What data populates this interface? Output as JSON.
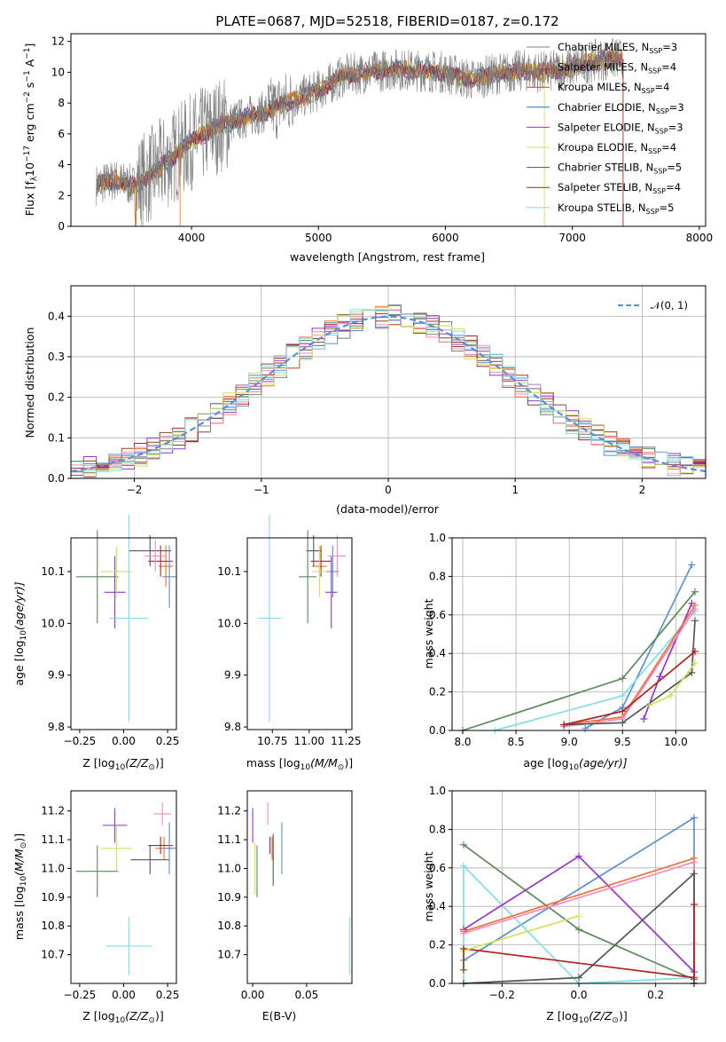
{
  "colors": {
    "chabrier_miles": "#808080",
    "salpeter_miles": "#ff7f0e",
    "kroupa_miles": "#a0522d",
    "chabrier_elodie": "#1f77b4",
    "salpeter_elodie": "#9932cc",
    "kroupa_elodie": "#d4e157",
    "chabrier_stelib": "#555555",
    "salpeter_stelib": "#b22222",
    "kroupa_stelib": "#80deea",
    "extra_blue": "#5b8fd8",
    "extra_green": "#5a8a5a",
    "extra_pink": "#f08cc0",
    "extra_orange": "#f07030",
    "normal": "#5b8fd8"
  },
  "chart_data": [
    {
      "type": "line",
      "title": "PLATE=0687, MJD=52518, FIBERID=0187, z=0.172",
      "xlabel": "wavelength [Angstrom, rest frame]",
      "ylabel": "Flux [f",
      "ylabel_sub": "λ",
      "ylabel_mid": "10",
      "ylabel_sup": "−17",
      "ylabel_tail": " erg cm",
      "ylabel_sup2": "−2",
      "ylabel_tail2": " s",
      "ylabel_sup3": "−1",
      "ylabel_tail3": " A",
      "ylabel_sup4": "−1",
      "ylabel_end": "]",
      "xlim": [
        3050,
        8050
      ],
      "ylim": [
        0,
        12.5
      ],
      "xticks": [
        "4000",
        "5000",
        "6000",
        "7000",
        "8000"
      ],
      "xtick_values": [
        4000,
        5000,
        6000,
        7000,
        8000
      ],
      "yticks": [
        "0",
        "2",
        "4",
        "6",
        "8",
        "10",
        "12"
      ],
      "ytick_values": [
        0,
        2,
        4,
        6,
        8,
        10,
        12
      ],
      "legend_position": "right",
      "spectrum_anchors": {
        "x": [
          3250,
          3400,
          3550,
          3700,
          3850,
          4000,
          4200,
          4400,
          4600,
          4800,
          5000,
          5200,
          5400,
          5600,
          5800,
          6000,
          6200,
          6400,
          6600,
          6800,
          7000,
          7200,
          7400
        ],
        "y": [
          2.7,
          3.0,
          2.6,
          3.5,
          4.5,
          5.5,
          6.5,
          7.0,
          7.5,
          8.2,
          8.8,
          9.8,
          10.0,
          10.2,
          10.1,
          10.0,
          9.5,
          9.9,
          10.1,
          10.0,
          10.3,
          10.8,
          10.9
        ]
      },
      "series": [
        {
          "name": "Chabrier MILES, N",
          "sub": "SSP",
          "tail": "=3",
          "color_key": "chabrier_miles"
        },
        {
          "name": "Salpeter MILES, N",
          "sub": "SSP",
          "tail": "=4",
          "color_key": "salpeter_miles"
        },
        {
          "name": "Kroupa MILES, N",
          "sub": "SSP",
          "tail": "=4",
          "color_key": "kroupa_miles"
        },
        {
          "name": "Chabrier ELODIE, N",
          "sub": "SSP",
          "tail": "=3",
          "color_key": "chabrier_elodie"
        },
        {
          "name": "Salpeter ELODIE, N",
          "sub": "SSP",
          "tail": "=3",
          "color_key": "salpeter_elodie"
        },
        {
          "name": "Kroupa ELODIE, N",
          "sub": "SSP",
          "tail": "=4",
          "color_key": "kroupa_elodie"
        },
        {
          "name": "Chabrier STELIB, N",
          "sub": "SSP",
          "tail": "=5",
          "color_key": "chabrier_stelib"
        },
        {
          "name": "Salpeter STELIB, N",
          "sub": "SSP",
          "tail": "=4",
          "color_key": "salpeter_stelib"
        },
        {
          "name": "Kroupa STELIB, N",
          "sub": "SSP",
          "tail": "=5",
          "color_key": "kroupa_stelib"
        }
      ]
    },
    {
      "type": "bar",
      "xlabel": "(data-model)/error",
      "ylabel": "Normed distribution",
      "xlim": [
        -2.5,
        2.5
      ],
      "ylim": [
        0,
        0.475
      ],
      "grid": true,
      "xticks": [
        "−2",
        "−1",
        "0",
        "1",
        "2"
      ],
      "xtick_values": [
        -2,
        -1,
        0,
        1,
        2
      ],
      "yticks": [
        "0.0",
        "0.1",
        "0.2",
        "0.3",
        "0.4"
      ],
      "ytick_values": [
        0,
        0.1,
        0.2,
        0.3,
        0.4
      ],
      "legend": "𝒩(0, 1)",
      "legend_position": "top-right",
      "bin_width": 0.1,
      "histogram_colors": [
        "#5b8fd8",
        "#f07030",
        "#5a8a5a",
        "#b22222",
        "#9932cc",
        "#8b4513",
        "#f08cc0",
        "#808080",
        "#d4e157",
        "#80deea"
      ]
    },
    {
      "type": "scatter",
      "xlabel": "Z [log",
      "xlabel_sub": "10",
      "xlabel_tail": "(Z/Z",
      "xlabel_sub2": "⊙",
      "xlabel_end": ")]",
      "ylabel": "age  [log",
      "ylabel_sub": "10",
      "ylabel_tail": "(age/yr)]",
      "xlim": [
        -0.3,
        0.3
      ],
      "ylim": [
        9.795,
        10.165
      ],
      "xticks": [
        "−0.25",
        "0.00",
        "0.25"
      ],
      "xtick_values": [
        -0.25,
        0.0,
        0.25
      ],
      "yticks": [
        "9.8",
        "9.9",
        "10.0",
        "10.1"
      ],
      "ytick_values": [
        9.8,
        9.9,
        10.0,
        10.1
      ],
      "points": [
        {
          "x": 0.24,
          "y": 10.11,
          "xe": 0.04,
          "ye": 0.04,
          "c": "#f07030"
        },
        {
          "x": 0.21,
          "y": 10.12,
          "xe": 0.07,
          "ye": 0.03,
          "c": "#b22222"
        },
        {
          "x": 0.15,
          "y": 10.14,
          "xe": 0.12,
          "ye": 0.03,
          "c": "#555555"
        },
        {
          "x": 0.26,
          "y": 10.09,
          "xe": 0.04,
          "ye": 0.06,
          "c": "#5b8fd8"
        },
        {
          "x": -0.15,
          "y": 10.09,
          "xe": 0.12,
          "ye": 0.09,
          "c": "#5a8a5a"
        },
        {
          "x": -0.05,
          "y": 10.06,
          "xe": 0.06,
          "ye": 0.07,
          "c": "#9932cc"
        },
        {
          "x": -0.04,
          "y": 10.1,
          "xe": 0.09,
          "ye": 0.05,
          "c": "#d4e157"
        },
        {
          "x": 0.18,
          "y": 10.13,
          "xe": 0.06,
          "ye": 0.03,
          "c": "#f08cc0"
        },
        {
          "x": 0.03,
          "y": 10.01,
          "xe": 0.11,
          "ye": 0.2,
          "c": "#80deea"
        }
      ]
    },
    {
      "type": "scatter",
      "xlabel": "mass [log",
      "xlabel_sub": "10",
      "xlabel_tail": "(M/M",
      "xlabel_sub2": "⊙",
      "xlabel_end": ")]",
      "xlim": [
        10.58,
        11.29
      ],
      "ylim": [
        9.795,
        10.165
      ],
      "xticks": [
        "10.75",
        "11.00",
        "11.25"
      ],
      "xtick_values": [
        10.75,
        11.0,
        11.25
      ],
      "yticks": [
        "9.8",
        "9.9",
        "10.0",
        "10.1"
      ],
      "ytick_values": [
        9.8,
        9.9,
        10.0,
        10.1
      ],
      "points": [
        {
          "x": 11.07,
          "y": 10.11,
          "xe": 0.05,
          "ye": 0.04,
          "c": "#f07030"
        },
        {
          "x": 11.08,
          "y": 10.12,
          "xe": 0.07,
          "ye": 0.03,
          "c": "#b22222"
        },
        {
          "x": 11.03,
          "y": 10.14,
          "xe": 0.05,
          "ye": 0.03,
          "c": "#555555"
        },
        {
          "x": 11.16,
          "y": 10.1,
          "xe": 0.04,
          "ye": 0.05,
          "c": "#5b8fd8"
        },
        {
          "x": 10.99,
          "y": 10.09,
          "xe": 0.06,
          "ye": 0.09,
          "c": "#5a8a5a"
        },
        {
          "x": 11.15,
          "y": 10.06,
          "xe": 0.04,
          "ye": 0.07,
          "c": "#9932cc"
        },
        {
          "x": 11.07,
          "y": 10.1,
          "xe": 0.05,
          "ye": 0.05,
          "c": "#d4e157"
        },
        {
          "x": 11.19,
          "y": 10.13,
          "xe": 0.06,
          "ye": 0.04,
          "c": "#f08cc0"
        },
        {
          "x": 10.73,
          "y": 10.01,
          "xe": 0.08,
          "ye": 0.2,
          "c": "#80deea"
        }
      ]
    },
    {
      "type": "line",
      "xlabel": "age  [log",
      "xlabel_sub": "10",
      "xlabel_tail": "(age/yr)]",
      "ylabel": "mass weight",
      "xlim": [
        7.9,
        10.28
      ],
      "ylim": [
        0,
        1.0
      ],
      "grid": true,
      "xticks": [
        "8.0",
        "8.5",
        "9.0",
        "9.5",
        "10.0"
      ],
      "xtick_values": [
        8.0,
        8.5,
        9.0,
        9.5,
        10.0
      ],
      "yticks": [
        "0.0",
        "0.2",
        "0.4",
        "0.6",
        "0.8",
        "1.0"
      ],
      "ytick_values": [
        0,
        0.2,
        0.4,
        0.6,
        0.8,
        1.0
      ],
      "series": [
        {
          "c": "#5b8fd8",
          "x": [
            9.15,
            9.5,
            10.15
          ],
          "y": [
            0.01,
            0.12,
            0.86
          ]
        },
        {
          "c": "#5a8a5a",
          "x": [
            8.0,
            9.5,
            10.18
          ],
          "y": [
            0.0,
            0.27,
            0.72
          ]
        },
        {
          "c": "#80deea",
          "x": [
            8.3,
            9.5,
            10.18
          ],
          "y": [
            0.0,
            0.18,
            0.62
          ]
        },
        {
          "c": "#9932cc",
          "x": [
            9.7,
            9.85,
            10.15
          ],
          "y": [
            0.06,
            0.28,
            0.66
          ]
        },
        {
          "c": "#f07030",
          "x": [
            8.95,
            9.5,
            10.18
          ],
          "y": [
            0.03,
            0.07,
            0.65
          ]
        },
        {
          "c": "#f08cc0",
          "x": [
            8.95,
            9.5,
            10.18
          ],
          "y": [
            0.02,
            0.06,
            0.63
          ]
        },
        {
          "c": "#555555",
          "x": [
            8.95,
            9.5,
            10.15,
            10.18
          ],
          "y": [
            0.03,
            0.04,
            0.3,
            0.57
          ]
        },
        {
          "c": "#b22222",
          "x": [
            8.95,
            9.5,
            10.18
          ],
          "y": [
            0.03,
            0.1,
            0.41
          ]
        },
        {
          "c": "#d4e157",
          "x": [
            9.75,
            9.95,
            10.18
          ],
          "y": [
            0.13,
            0.18,
            0.35
          ]
        }
      ]
    },
    {
      "type": "scatter",
      "xlabel": "Z [log",
      "xlabel_sub": "10",
      "xlabel_tail": "(Z/Z",
      "xlabel_sub2": "⊙",
      "xlabel_end": ")]",
      "ylabel": "mass [log",
      "ylabel_sub": "10",
      "ylabel_tail": "(M/M",
      "ylabel_sub2": "⊙",
      "ylabel_end": ")]",
      "xlim": [
        -0.3,
        0.3
      ],
      "ylim": [
        10.6,
        11.27
      ],
      "xticks": [
        "−0.25",
        "0.00",
        "0.25"
      ],
      "xtick_values": [
        -0.25,
        0.0,
        0.25
      ],
      "yticks": [
        "10.7",
        "10.8",
        "10.9",
        "11.0",
        "11.1",
        "11.2"
      ],
      "ytick_values": [
        10.7,
        10.8,
        10.9,
        11.0,
        11.1,
        11.2
      ],
      "points": [
        {
          "x": 0.23,
          "y": 11.07,
          "xe": 0.05,
          "ye": 0.04,
          "c": "#f07030"
        },
        {
          "x": 0.21,
          "y": 11.08,
          "xe": 0.07,
          "ye": 0.03,
          "c": "#b22222"
        },
        {
          "x": 0.15,
          "y": 11.03,
          "xe": 0.11,
          "ye": 0.05,
          "c": "#555555"
        },
        {
          "x": 0.26,
          "y": 11.07,
          "xe": 0.04,
          "ye": 0.09,
          "c": "#5b8fd8"
        },
        {
          "x": -0.15,
          "y": 10.99,
          "xe": 0.12,
          "ye": 0.09,
          "c": "#5a8a5a"
        },
        {
          "x": -0.05,
          "y": 11.15,
          "xe": 0.07,
          "ye": 0.06,
          "c": "#9932cc"
        },
        {
          "x": -0.04,
          "y": 11.07,
          "xe": 0.09,
          "ye": 0.08,
          "c": "#d4e157"
        },
        {
          "x": 0.22,
          "y": 11.19,
          "xe": 0.05,
          "ye": 0.04,
          "c": "#f08cc0"
        },
        {
          "x": 0.03,
          "y": 10.73,
          "xe": 0.13,
          "ye": 0.1,
          "c": "#80deea"
        }
      ]
    },
    {
      "type": "scatter",
      "xlabel": "E(B-V)",
      "xlim": [
        -0.005,
        0.092
      ],
      "ylim": [
        10.6,
        11.27
      ],
      "xticks": [
        "0.00",
        "0.05"
      ],
      "xtick_values": [
        0.0,
        0.05
      ],
      "yticks": [
        "10.7",
        "10.8",
        "10.9",
        "11.0",
        "11.1",
        "11.2"
      ],
      "ytick_values": [
        10.7,
        10.8,
        10.9,
        11.0,
        11.1,
        11.2
      ],
      "points": [
        {
          "x": 0.0,
          "y": 11.15,
          "xe": 0,
          "ye": 0.06,
          "c": "#9932cc"
        },
        {
          "x": 0.002,
          "y": 11.0,
          "xe": 0,
          "ye": 0.09,
          "c": "#d4e157"
        },
        {
          "x": 0.004,
          "y": 10.99,
          "xe": 0,
          "ye": 0.09,
          "c": "#5a8a5a"
        },
        {
          "x": 0.014,
          "y": 11.19,
          "xe": 0,
          "ye": 0.04,
          "c": "#f08cc0"
        },
        {
          "x": 0.016,
          "y": 11.08,
          "xe": 0,
          "ye": 0.03,
          "c": "#b22222"
        },
        {
          "x": 0.018,
          "y": 11.07,
          "xe": 0,
          "ye": 0.04,
          "c": "#f07030"
        },
        {
          "x": 0.019,
          "y": 11.03,
          "xe": 0,
          "ye": 0.09,
          "c": "#555555"
        },
        {
          "x": 0.027,
          "y": 11.07,
          "xe": 0,
          "ye": 0.09,
          "c": "#5b8fd8"
        },
        {
          "x": 0.09,
          "y": 10.73,
          "xe": 0,
          "ye": 0.1,
          "c": "#80deea"
        }
      ]
    },
    {
      "type": "line",
      "xlabel": "Z [log",
      "xlabel_sub": "10",
      "xlabel_tail": "(Z/Z",
      "xlabel_sub2": "⊙",
      "xlabel_end": ")]",
      "ylabel": "mass weight",
      "xlim": [
        -0.33,
        0.33
      ],
      "ylim": [
        0,
        1.0
      ],
      "grid": true,
      "xticks": [
        "−0.2",
        "0.0",
        "0.2"
      ],
      "xtick_values": [
        -0.2,
        0.0,
        0.2
      ],
      "yticks": [
        "0.0",
        "0.2",
        "0.4",
        "0.6",
        "0.8",
        "1.0"
      ],
      "ytick_values": [
        0,
        0.2,
        0.4,
        0.6,
        0.8,
        1.0
      ],
      "series": [
        {
          "c": "#5b8fd8",
          "x": [
            -0.3,
            0.3,
            0.3
          ],
          "y": [
            0.12,
            0.86,
            0.0
          ]
        },
        {
          "c": "#5a8a5a",
          "x": [
            -0.3,
            0.0,
            0.3,
            0.3
          ],
          "y": [
            0.72,
            0.28,
            0.02,
            0.0
          ]
        },
        {
          "c": "#80deea",
          "x": [
            -0.3,
            -0.3,
            0.0,
            0.3,
            0.3
          ],
          "y": [
            0.0,
            0.61,
            0.0,
            0.03,
            0.21
          ]
        },
        {
          "c": "#9932cc",
          "x": [
            -0.3,
            0.0,
            0.3
          ],
          "y": [
            0.28,
            0.66,
            0.06
          ]
        },
        {
          "c": "#f07030",
          "x": [
            -0.3,
            0.3,
            0.3
          ],
          "y": [
            0.27,
            0.65,
            0.0
          ]
        },
        {
          "c": "#f08cc0",
          "x": [
            -0.3,
            0.3,
            0.3
          ],
          "y": [
            0.26,
            0.63,
            0.0
          ]
        },
        {
          "c": "#555555",
          "x": [
            -0.3,
            0.0,
            0.3,
            0.3
          ],
          "y": [
            0.0,
            0.03,
            0.57,
            0.0
          ]
        },
        {
          "c": "#b22222",
          "x": [
            -0.3,
            0.3,
            0.3
          ],
          "y": [
            0.18,
            0.03,
            0.41
          ]
        },
        {
          "c": "#d4e157",
          "x": [
            -0.3,
            0.0
          ],
          "y": [
            0.17,
            0.35
          ]
        },
        {
          "c": "#8b4513",
          "x": [
            -0.3,
            -0.3
          ],
          "y": [
            0.07,
            0.18
          ]
        }
      ]
    }
  ]
}
